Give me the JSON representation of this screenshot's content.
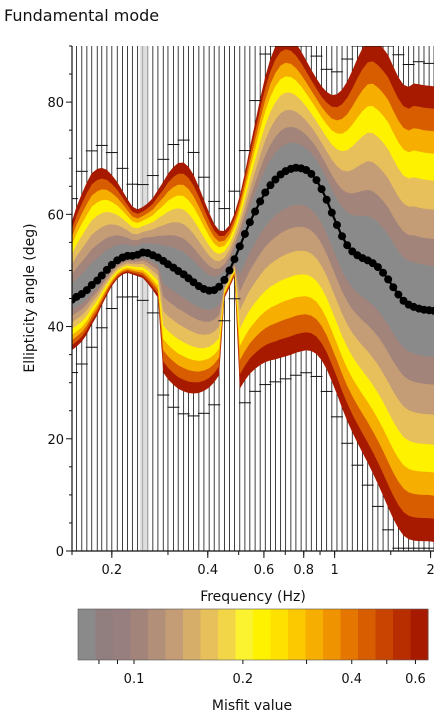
{
  "title": "Fundamental mode",
  "chart_data": {
    "type": "line",
    "title": "Fundamental mode",
    "xlabel": "Frequency (Hz)",
    "ylabel": "Ellipticity angle (deg)",
    "x_scale": "log",
    "xlim": [
      0.15,
      2.05
    ],
    "ylim": [
      0,
      90
    ],
    "x_ticks": [
      {
        "value": 0.2,
        "label": "0.2"
      },
      {
        "value": 0.4,
        "label": "0.4"
      },
      {
        "value": 0.6,
        "label": "0.6"
      },
      {
        "value": 0.8,
        "label": "0.8"
      },
      {
        "value": 1,
        "label": "1"
      },
      {
        "value": 2,
        "label": "2"
      }
    ],
    "y_ticks": [
      {
        "value": 0,
        "label": "0"
      },
      {
        "value": 20,
        "label": "20"
      },
      {
        "value": 40,
        "label": "40"
      },
      {
        "value": 60,
        "label": "60"
      },
      {
        "value": 80,
        "label": "80"
      }
    ],
    "grid": "vertical lines at sampled frequencies",
    "series": [
      {
        "style": "black line with circle markers",
        "color": "#000000",
        "x": [
          0.15,
          0.155,
          0.161,
          0.167,
          0.173,
          0.18,
          0.186,
          0.193,
          0.2,
          0.208,
          0.216,
          0.224,
          0.232,
          0.241,
          0.25,
          0.259,
          0.269,
          0.279,
          0.29,
          0.3,
          0.312,
          0.323,
          0.336,
          0.348,
          0.361,
          0.375,
          0.389,
          0.404,
          0.419,
          0.434,
          0.451,
          0.468,
          0.485,
          0.504,
          0.523,
          0.542,
          0.563,
          0.584,
          0.606,
          0.629,
          0.652,
          0.677,
          0.702,
          0.729,
          0.756,
          0.785,
          0.814,
          0.845,
          0.877,
          0.91,
          0.944,
          0.98,
          1.017,
          1.055,
          1.095,
          1.136,
          1.179,
          1.223,
          1.27,
          1.317,
          1.367,
          1.419,
          1.472,
          1.528,
          1.585,
          1.645,
          1.707,
          1.771,
          1.838,
          1.907,
          1.979,
          2.05
        ],
        "y": [
          44.8,
          45.3,
          45.8,
          46.5,
          47.4,
          48.2,
          49.1,
          50.1,
          51.0,
          51.8,
          52.3,
          52.6,
          52.6,
          52.8,
          53.2,
          53.1,
          52.7,
          52.3,
          51.7,
          51.1,
          50.5,
          49.9,
          49.3,
          48.6,
          47.9,
          47.2,
          46.7,
          46.4,
          46.5,
          47.1,
          48.3,
          50.0,
          52.0,
          54.3,
          56.5,
          58.6,
          60.5,
          62.3,
          63.9,
          65.2,
          66.2,
          67.1,
          67.7,
          68.1,
          68.3,
          68.2,
          67.9,
          67.2,
          66.1,
          64.5,
          62.6,
          60.3,
          58.1,
          56.1,
          54.5,
          53.4,
          52.7,
          52.2,
          51.8,
          51.3,
          50.6,
          49.6,
          48.4,
          47.0,
          45.7,
          44.6,
          43.9,
          43.5,
          43.2,
          43.0,
          42.9,
          42.8
        ]
      }
    ],
    "colorbar": {
      "label": "Misfit value",
      "scale": "log",
      "range": [
        0.07,
        0.65
      ],
      "ticks": [
        {
          "value": 0.1,
          "label": "0.1"
        },
        {
          "value": 0.2,
          "label": "0.2"
        },
        {
          "value": 0.4,
          "label": "0.4"
        },
        {
          "value": 0.6,
          "label": "0.6"
        }
      ],
      "colors": [
        "#8a8a8a",
        "#917f7f",
        "#977f7f",
        "#a3847b",
        "#b18f78",
        "#c49c75",
        "#d6ae6a",
        "#e7c05c",
        "#f3d648",
        "#fbf230",
        "#fff200",
        "#ffe100",
        "#fcc800",
        "#f6ae00",
        "#ef9300",
        "#e57700",
        "#d85d00",
        "#c94400",
        "#b92e00",
        "#a81a00"
      ]
    }
  }
}
